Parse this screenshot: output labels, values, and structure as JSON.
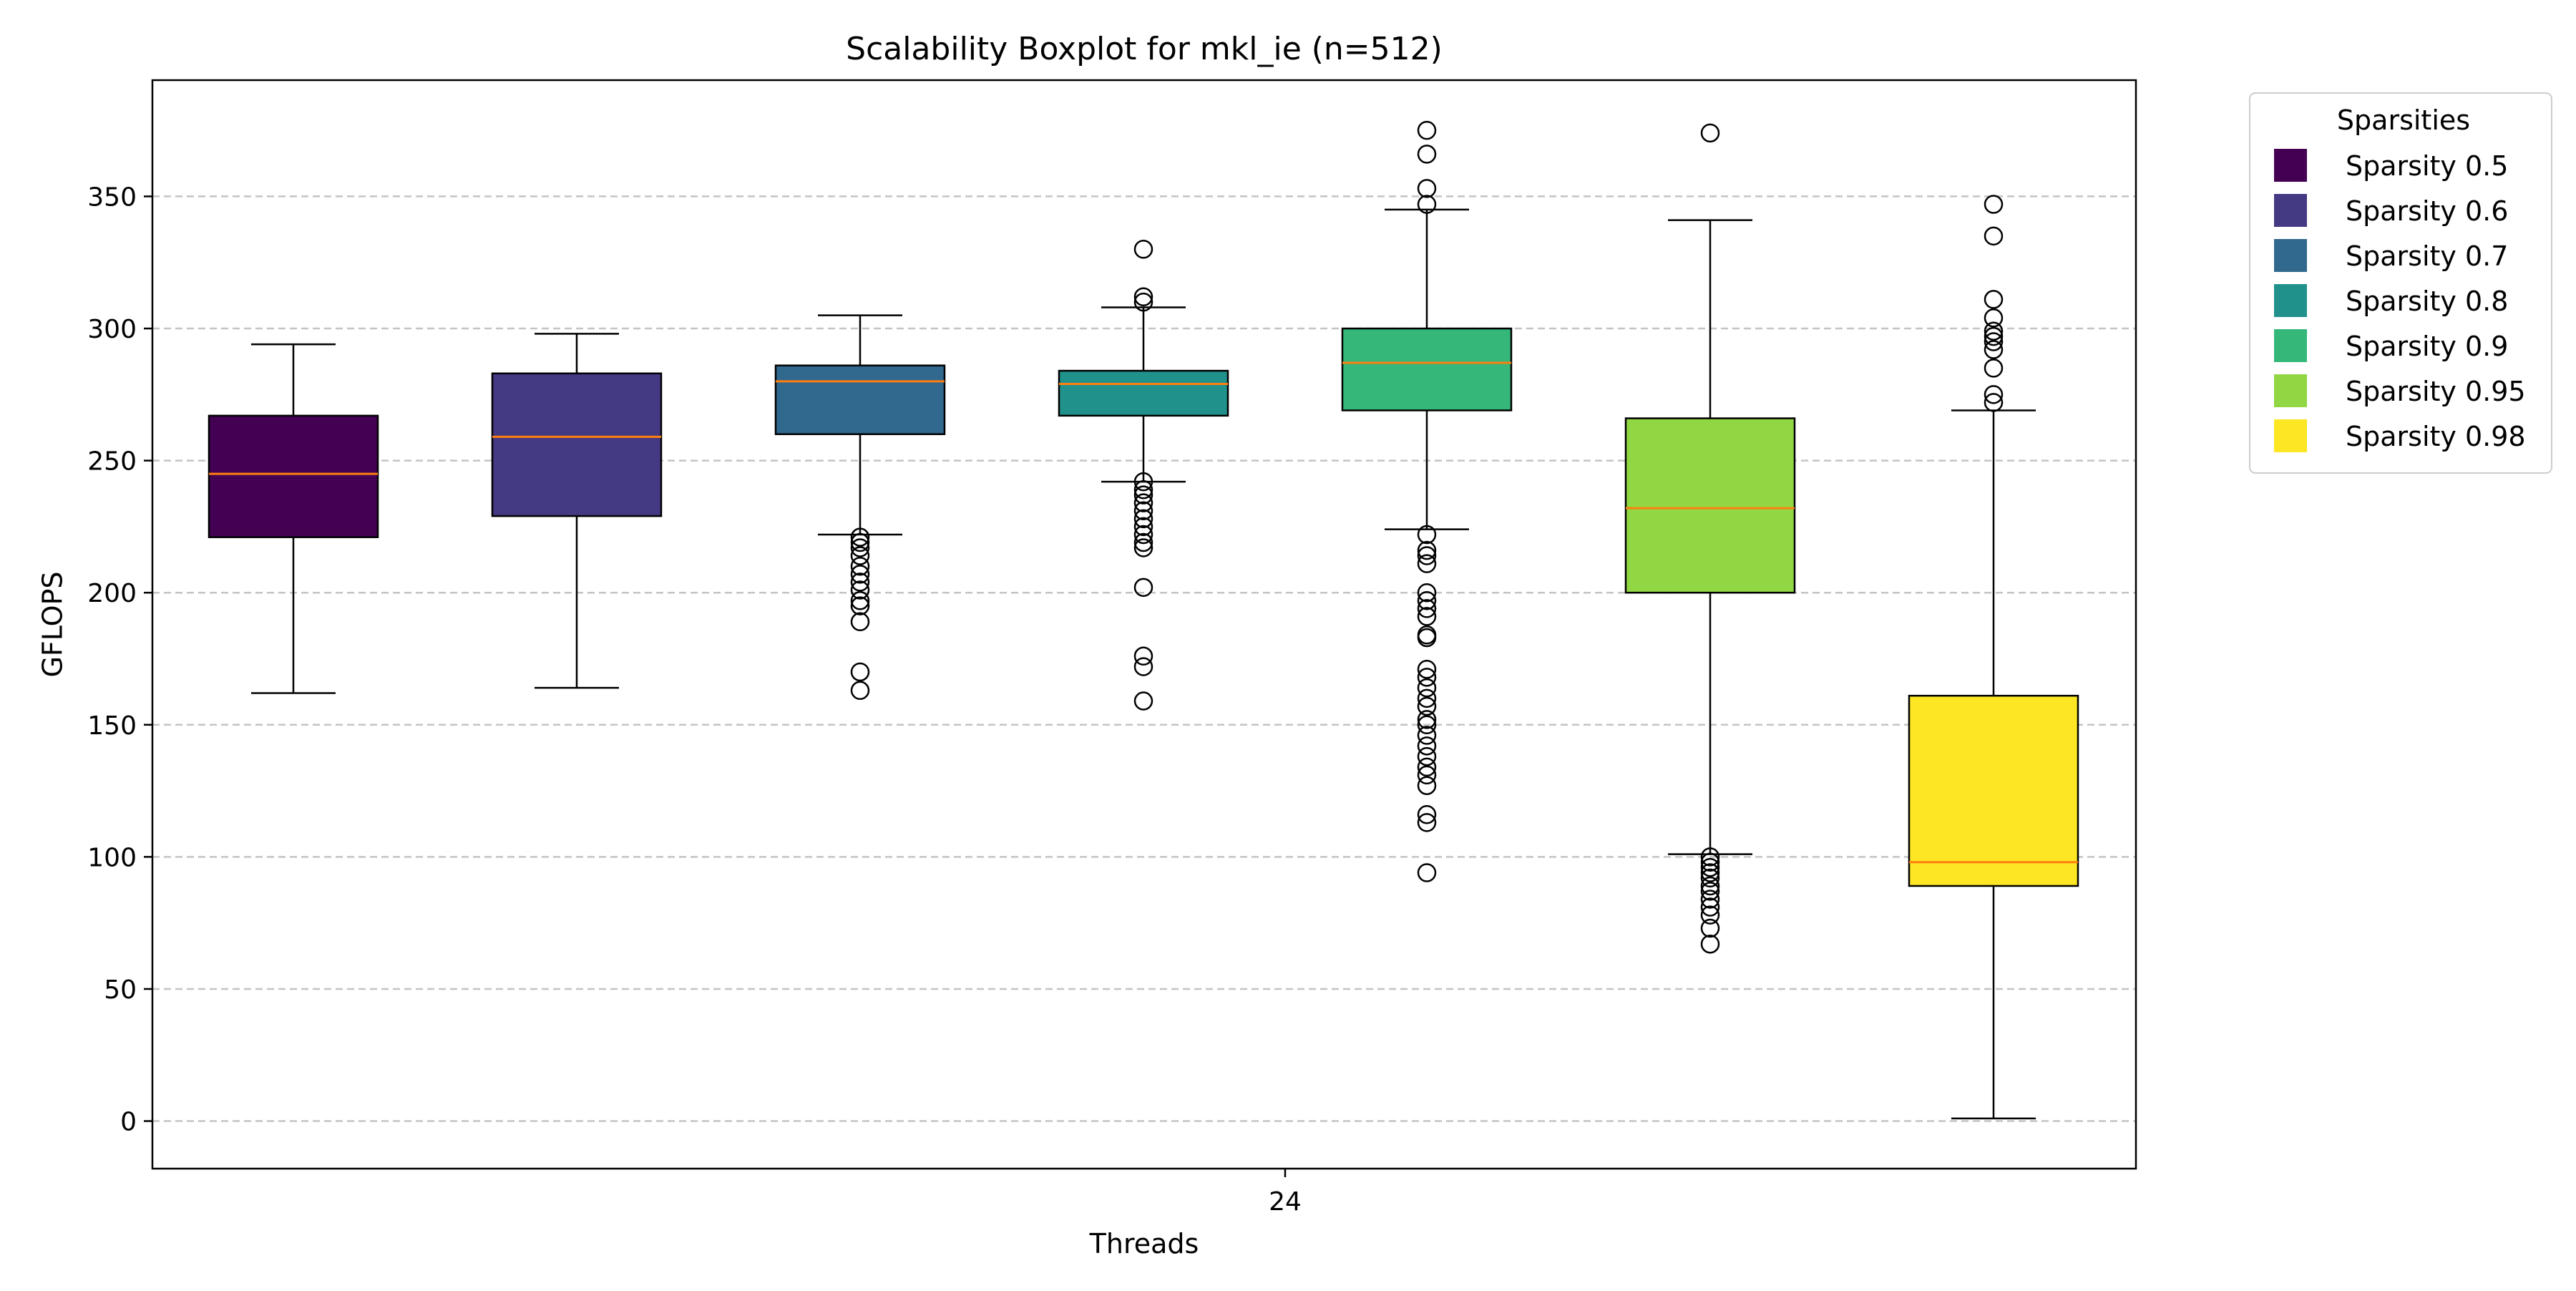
{
  "chart_data": {
    "type": "boxplot",
    "title": "Scalability Boxplot for mkl_ie (n=512)",
    "xlabel": "Threads",
    "ylabel": "GFLOPS",
    "x_categories": [
      "24"
    ],
    "ylim": [
      -18,
      394
    ],
    "yticks": [
      0,
      50,
      100,
      150,
      200,
      250,
      300,
      350
    ],
    "grid": "y-dashed",
    "legend": {
      "title": "Sparsities",
      "placement": "outside-top-right"
    },
    "series": [
      {
        "name": "Sparsity 0.5",
        "color": "#440154",
        "whisker_low": 162,
        "q1": 221,
        "median": 245,
        "q3": 267,
        "whisker_high": 294,
        "outliers": []
      },
      {
        "name": "Sparsity 0.6",
        "color": "#443983",
        "whisker_low": 164,
        "q1": 229,
        "median": 259,
        "q3": 283,
        "whisker_high": 298,
        "outliers": []
      },
      {
        "name": "Sparsity 0.7",
        "color": "#31688e",
        "whisker_low": 222,
        "q1": 260,
        "median": 280,
        "q3": 286,
        "whisker_high": 305,
        "outliers": [
          163,
          170,
          189,
          195,
          197,
          201,
          204,
          207,
          210,
          214,
          217,
          219,
          221
        ]
      },
      {
        "name": "Sparsity 0.8",
        "color": "#21918c",
        "whisker_low": 242,
        "q1": 267,
        "median": 279,
        "q3": 284,
        "whisker_high": 308,
        "outliers": [
          159,
          172,
          176,
          202,
          217,
          219,
          222,
          225,
          228,
          231,
          234,
          237,
          239,
          242,
          310,
          312,
          330
        ]
      },
      {
        "name": "Sparsity 0.9",
        "color": "#35b779",
        "whisker_low": 224,
        "q1": 269,
        "median": 287,
        "q3": 300,
        "whisker_high": 345,
        "outliers": [
          94,
          113,
          116,
          127,
          131,
          134,
          138,
          142,
          146,
          150,
          152,
          157,
          160,
          164,
          168,
          171,
          183,
          184,
          191,
          194,
          197,
          200,
          211,
          214,
          216,
          222,
          347,
          353,
          366,
          375
        ]
      },
      {
        "name": "Sparsity 0.95",
        "color": "#90d743",
        "whisker_low": 101,
        "q1": 200,
        "median": 232,
        "q3": 266,
        "whisker_high": 341,
        "outliers": [
          67,
          73,
          78,
          81,
          84,
          87,
          89,
          92,
          94,
          96,
          98,
          100,
          374
        ]
      },
      {
        "name": "Sparsity 0.98",
        "color": "#fde725",
        "whisker_low": 1,
        "q1": 89,
        "median": 98,
        "q3": 161,
        "whisker_high": 269,
        "outliers": [
          272,
          275,
          285,
          292,
          295,
          297,
          299,
          304,
          311,
          335,
          347
        ]
      }
    ],
    "median_color": "#ff7f0e",
    "grid_color": "#c4c4c4"
  }
}
